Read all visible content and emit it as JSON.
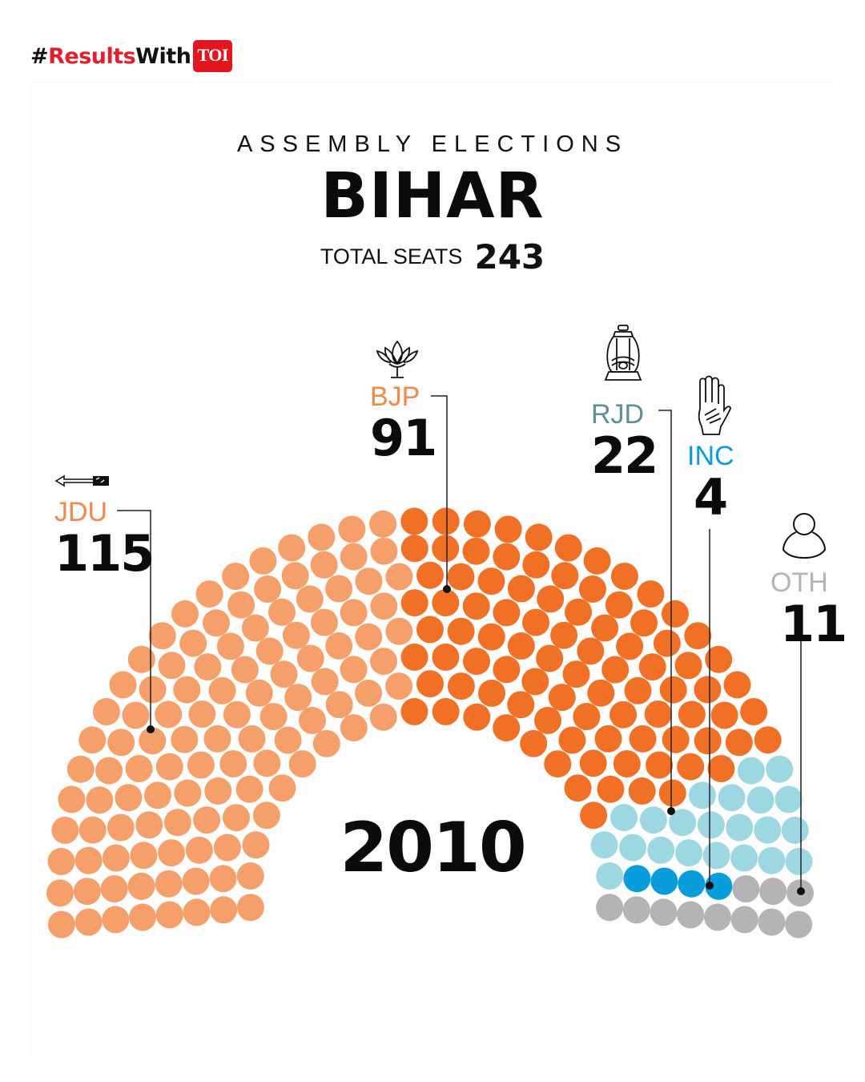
{
  "header": {
    "hashtag_symbol": "#",
    "hashtag_results": "Results",
    "hashtag_with": "With",
    "brand": "TOI",
    "brand_color": "#e3161f"
  },
  "titles": {
    "subtitle": "ASSEMBLY ELECTIONS",
    "state": "BIHAR",
    "total_label": "TOTAL SEATS",
    "total_value": "243",
    "year": "2010"
  },
  "parties": [
    {
      "name": "JDU",
      "seats": "115",
      "color": "#f5a06a",
      "label_color": "#f08a4b",
      "icon": "arrow-icon"
    },
    {
      "name": "BJP",
      "seats": "91",
      "color": "#f07125",
      "label_color": "#f08a4b",
      "icon": "lotus-icon"
    },
    {
      "name": "RJD",
      "seats": "22",
      "color": "#9dd8e2",
      "label_color": "#5f8f96",
      "icon": "lantern-icon"
    },
    {
      "name": "INC",
      "seats": "4",
      "color": "#0a9ddb",
      "label_color": "#0a9ddb",
      "icon": "hand-icon"
    },
    {
      "name": "OTH",
      "seats": "11",
      "color": "#b4b3b6",
      "label_color": "#b4b3b6",
      "icon": "person-icon"
    }
  ],
  "chart_data": {
    "type": "parliament-hemicycle",
    "title": "ASSEMBLY ELECTIONS BIHAR",
    "subtitle": "TOTAL SEATS 243",
    "annotation": "2010",
    "categories": [
      "JDU",
      "BJP",
      "RJD",
      "INC",
      "OTH"
    ],
    "values": [
      115,
      91,
      22,
      4,
      11
    ],
    "colors": [
      "#f5a06a",
      "#f07125",
      "#9dd8e2",
      "#0a9ddb",
      "#b4b3b6"
    ],
    "total": 243,
    "rows": 8
  }
}
